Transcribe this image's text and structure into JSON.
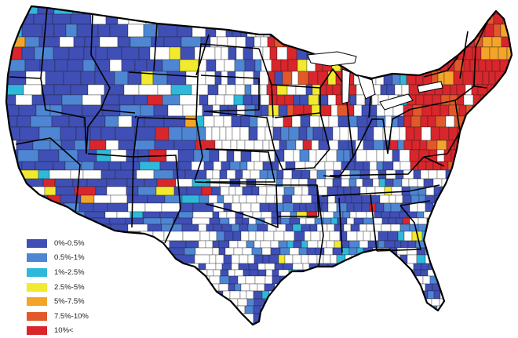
{
  "map": {
    "legend": [
      {
        "label": "0%-0.5%",
        "color": "#3f4fb5"
      },
      {
        "label": "0.5%-1%",
        "color": "#4f86d3"
      },
      {
        "label": "1%-2.5%",
        "color": "#2fb8da"
      },
      {
        "label": "2.5%-5%",
        "color": "#f2ea2e"
      },
      {
        "label": "5%-7.5%",
        "color": "#f3a52a"
      },
      {
        "label": "7.5%-10%",
        "color": "#e1582a"
      },
      {
        "label": "10%<",
        "color": "#d8262c"
      }
    ],
    "regions": [
      {
        "name": "Northeast / Mid-Atlantic",
        "level": 6
      },
      {
        "name": "Upper Midwest (MN, WI)",
        "level": 6
      },
      {
        "name": "Maine",
        "level": 4
      },
      {
        "name": "Western states",
        "level": 0
      },
      {
        "name": "Plains / South",
        "level": 1
      }
    ]
  }
}
